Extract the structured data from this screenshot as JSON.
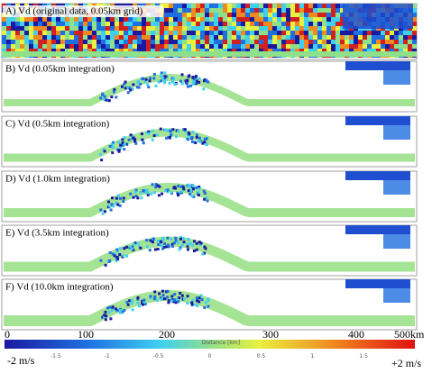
{
  "panels": [
    {
      "label": "A) Vd (original data, 0.05km grid)"
    },
    {
      "label": "B) Vd (0.05km integration)"
    },
    {
      "label": "C) Vd (0.5km integration)"
    },
    {
      "label": "D) Vd (1.0km integration)"
    },
    {
      "label": "E) Vd (3.5km integration)"
    },
    {
      "label": "F) Vd (10.0km integration)"
    }
  ],
  "x_axis": {
    "title": "Distance [km]",
    "ticks": [
      "0",
      "100",
      "200",
      "300",
      "400",
      "500km"
    ]
  },
  "colorbar": {
    "min_label": "-2 m/s",
    "max_label": "+2 m/s",
    "ticks": [
      "-1.5",
      "-1",
      "-0.5",
      "0",
      "0.5",
      "1",
      "1.5"
    ]
  }
}
